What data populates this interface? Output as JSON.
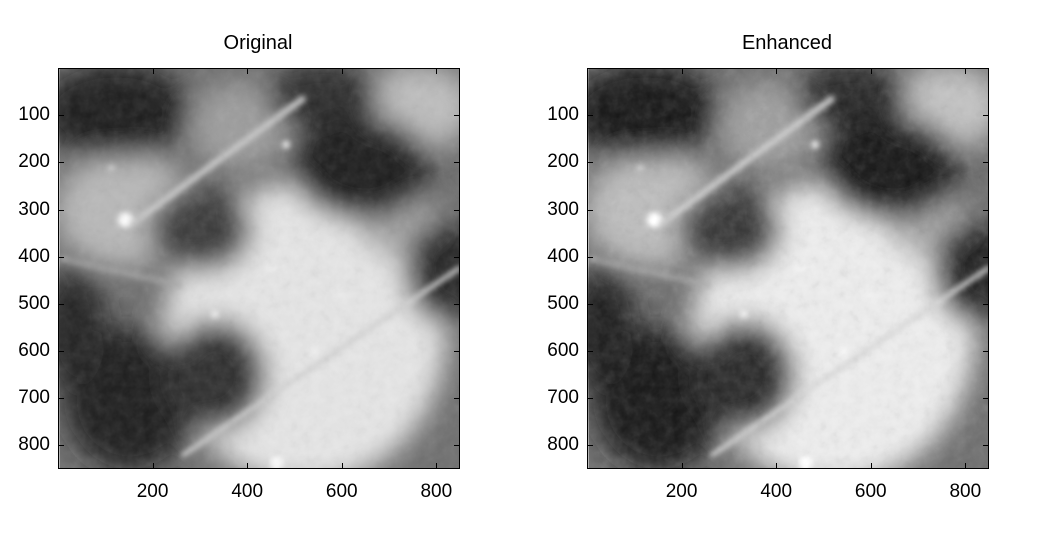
{
  "panels": [
    {
      "title": "Original",
      "xticks": [
        "200",
        "400",
        "600",
        "800"
      ],
      "yticks": [
        "100",
        "200",
        "300",
        "400",
        "500",
        "600",
        "700",
        "800"
      ]
    },
    {
      "title": "Enhanced",
      "xticks": [
        "200",
        "400",
        "600",
        "800"
      ],
      "yticks": [
        "100",
        "200",
        "300",
        "400",
        "500",
        "600",
        "700",
        "800"
      ]
    }
  ],
  "image": {
    "subject": "moon-surface-grayscale",
    "colors": {
      "dark_mare": "#1c1c1c",
      "mid": "#6e6e6e",
      "bright_highland": "#e6e6e6"
    }
  }
}
